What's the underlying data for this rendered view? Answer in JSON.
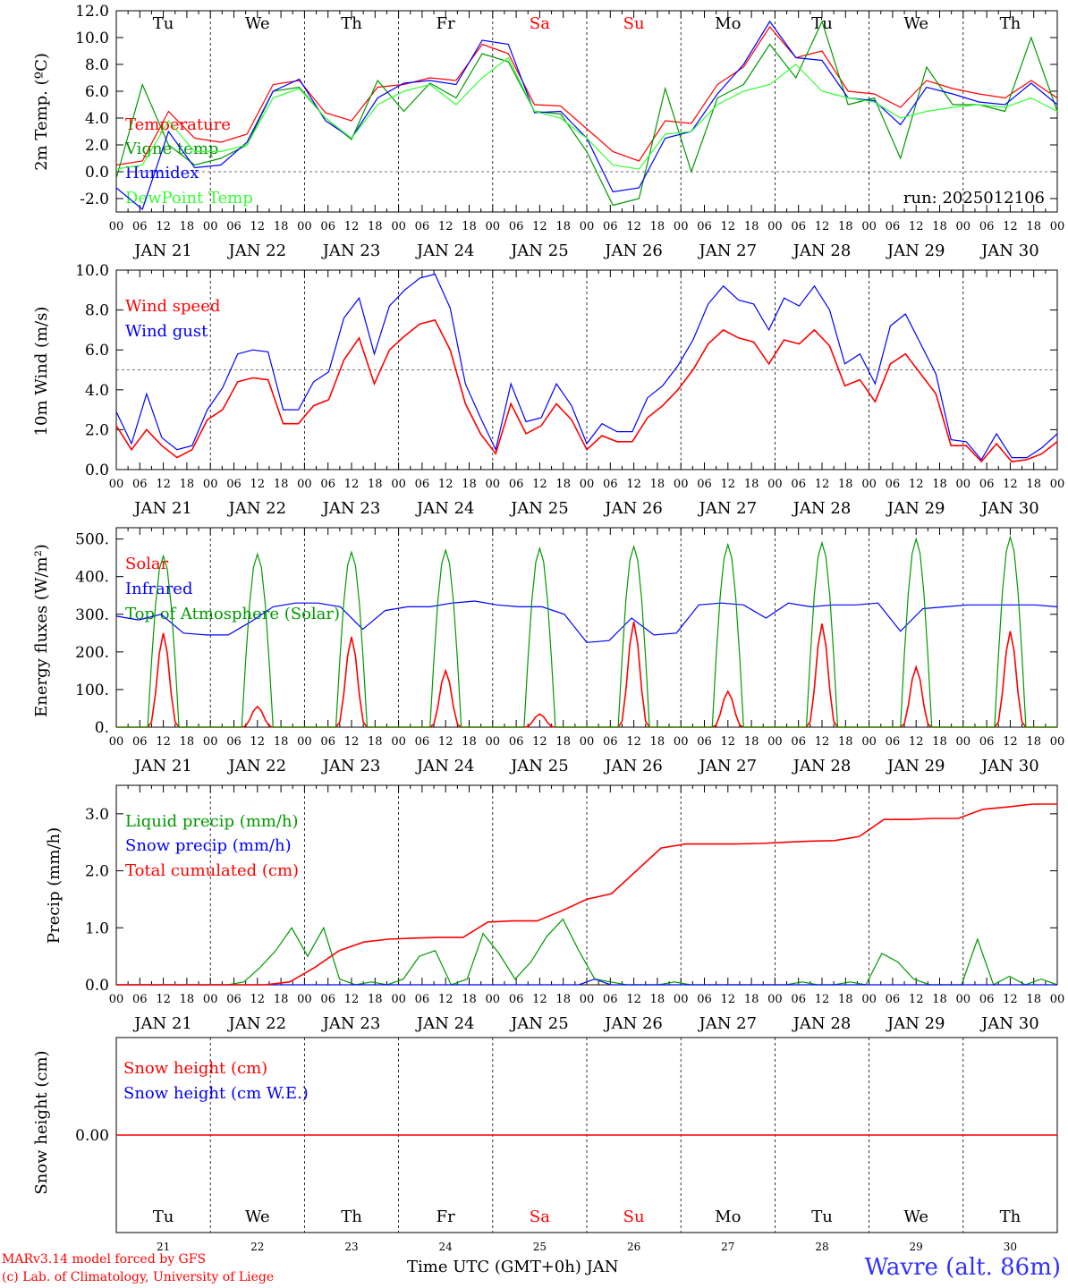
{
  "footer": {
    "credit_line1": "MARv3.14 model forced by GFS",
    "credit_line2": "(c) Lab. of Climatology, University of Liege",
    "x_axis_title": "Time UTC (GMT+0h) JAN",
    "location": "Wavre (alt. 86m)"
  },
  "colors": {
    "red": "#ff0000",
    "green": "#009900",
    "blue": "#0000ff",
    "lightgreen": "#33ff33",
    "weekend": "#ff0000"
  },
  "common": {
    "hour_ticks": [
      "00",
      "06",
      "12",
      "18"
    ],
    "date_labels": [
      "JAN 21",
      "JAN 22",
      "JAN 23",
      "JAN 24",
      "JAN 25",
      "JAN 26",
      "JAN 27",
      "JAN 28",
      "JAN 29",
      "JAN 30"
    ],
    "day_abbr": [
      "Tu",
      "We",
      "Th",
      "Fr",
      "Sa",
      "Su",
      "Mo",
      "Tu",
      "We",
      "Th"
    ],
    "weekend_days": [
      "Sa",
      "Su"
    ],
    "day_numbers": [
      "21",
      "22",
      "23",
      "24",
      "25",
      "26",
      "27",
      "28",
      "29",
      "30"
    ]
  },
  "chart_data": [
    {
      "type": "line",
      "ylabel": "2m Temp. (ºC)",
      "ylim": [
        -3,
        12
      ],
      "yticks": [
        "-2.0",
        "0.0",
        "2.0",
        "4.0",
        "6.0",
        "8.0",
        "10.0",
        "12.0"
      ],
      "ytick_values": [
        -2,
        0,
        2,
        4,
        6,
        8,
        10,
        12
      ],
      "reference_line": 0,
      "annotation": "run: 2025012106",
      "x_hours": [
        0,
        6,
        12,
        18,
        24,
        30,
        36,
        42,
        48,
        54,
        60,
        66,
        72,
        78,
        84,
        90,
        96,
        102,
        108,
        114,
        120,
        126,
        132,
        138,
        144,
        150,
        156,
        162,
        168,
        174,
        180,
        186,
        192,
        198,
        204,
        210,
        216,
        222,
        228,
        234,
        240
      ],
      "series": [
        {
          "name": "Temperature",
          "color": "red",
          "values": [
            0.5,
            0.8,
            4.5,
            2.5,
            2.2,
            2.8,
            6.5,
            6.8,
            4.4,
            3.8,
            6.3,
            6.5,
            7.0,
            6.8,
            9.5,
            8.8,
            5.0,
            4.9,
            3.2,
            1.5,
            0.8,
            3.8,
            3.6,
            6.5,
            7.8,
            10.8,
            8.5,
            9.0,
            6.0,
            5.8,
            4.8,
            6.8,
            6.2,
            5.8,
            5.5,
            6.8,
            5.5
          ]
        },
        {
          "name": "Vigne temp",
          "color": "green",
          "values": [
            -0.5,
            6.5,
            2.0,
            0.5,
            1.0,
            2.0,
            6.0,
            6.3,
            4.0,
            2.4,
            6.8,
            4.5,
            6.6,
            5.5,
            8.8,
            8.2,
            4.5,
            4.3,
            1.5,
            -2.5,
            -2.0,
            6.2,
            0.0,
            5.5,
            6.5,
            9.5,
            7.0,
            11.2,
            5.0,
            5.5,
            1.0,
            7.8,
            5.0,
            5.0,
            4.5,
            10.0,
            4.5
          ]
        },
        {
          "name": "Humidex",
          "color": "blue",
          "values": [
            -1.2,
            -2.8,
            3.0,
            0.3,
            0.5,
            2.2,
            6.0,
            6.9,
            3.8,
            2.5,
            5.5,
            6.6,
            6.8,
            6.5,
            9.8,
            9.5,
            4.4,
            4.5,
            2.5,
            -1.5,
            -1.2,
            2.5,
            3.0,
            5.8,
            8.0,
            11.2,
            8.5,
            8.3,
            5.5,
            5.3,
            3.5,
            6.3,
            5.8,
            5.2,
            5.0,
            6.6,
            5.0
          ]
        },
        {
          "name": "DewPoint Temp",
          "color": "lightgreen",
          "values": [
            0.2,
            0.5,
            3.8,
            1.5,
            1.5,
            2.0,
            5.5,
            6.2,
            4.0,
            2.5,
            5.0,
            6.0,
            6.5,
            5.0,
            7.0,
            8.5,
            4.5,
            4.0,
            2.5,
            0.5,
            0.2,
            2.8,
            3.0,
            5.0,
            6.0,
            6.5,
            8.0,
            6.0,
            5.5,
            5.2,
            4.0,
            4.5,
            4.8,
            5.0,
            4.8,
            5.5,
            4.5
          ]
        }
      ]
    },
    {
      "type": "line",
      "ylabel": "10m Wind (m/s)",
      "ylim": [
        0,
        10
      ],
      "yticks": [
        "0.0",
        "2.0",
        "4.0",
        "6.0",
        "8.0",
        "10.0"
      ],
      "ytick_values": [
        0,
        2,
        4,
        6,
        8,
        10
      ],
      "reference_line": 5,
      "series": [
        {
          "name": "Wind speed",
          "color": "red",
          "values": [
            2.2,
            1.0,
            2.0,
            1.2,
            0.6,
            1.0,
            2.5,
            3.0,
            4.4,
            4.6,
            4.5,
            2.3,
            2.3,
            3.2,
            3.5,
            5.5,
            6.6,
            4.3,
            6.0,
            6.7,
            7.3,
            7.5,
            6.0,
            3.3,
            1.8,
            0.8,
            3.3,
            1.8,
            2.2,
            3.3,
            2.5,
            1.0,
            1.7,
            1.4,
            1.4,
            2.6,
            3.2,
            4.0,
            5.0,
            6.3,
            7.0,
            6.6,
            6.4,
            5.3,
            6.5,
            6.3,
            7.0,
            6.2,
            4.2,
            4.5,
            3.4,
            5.3,
            5.8,
            4.8,
            3.8,
            1.2,
            1.2,
            0.4,
            1.3,
            0.4,
            0.5,
            0.8,
            1.4
          ]
        },
        {
          "name": "Wind gust",
          "color": "blue",
          "values": [
            2.9,
            1.3,
            3.8,
            1.6,
            1.0,
            1.2,
            3.0,
            4.1,
            5.8,
            6.0,
            5.9,
            3.0,
            3.0,
            4.4,
            4.9,
            7.6,
            8.6,
            5.8,
            8.2,
            9.0,
            9.6,
            9.8,
            8.1,
            4.3,
            2.6,
            1.0,
            4.3,
            2.4,
            2.6,
            4.3,
            3.2,
            1.3,
            2.3,
            1.9,
            1.9,
            3.6,
            4.2,
            5.2,
            6.5,
            8.3,
            9.2,
            8.5,
            8.3,
            7.0,
            8.6,
            8.2,
            9.2,
            8.0,
            5.3,
            5.8,
            4.3,
            7.2,
            7.8,
            6.3,
            4.8,
            1.5,
            1.4,
            0.5,
            1.8,
            0.6,
            0.6,
            1.1,
            1.8
          ]
        }
      ]
    },
    {
      "type": "line",
      "ylabel": "Energy fluxes (W/m²)",
      "ylim": [
        0,
        530
      ],
      "yticks": [
        "0.",
        "100.",
        "200.",
        "300.",
        "400.",
        "500."
      ],
      "ytick_values": [
        0,
        100,
        200,
        300,
        400,
        500
      ],
      "series": [
        {
          "name": "Solar",
          "color": "red",
          "peaks": [
            250,
            55,
            240,
            150,
            35,
            280,
            95,
            275,
            160,
            255
          ]
        },
        {
          "name": "Infrared",
          "color": "blue",
          "values": [
            295,
            285,
            300,
            250,
            245,
            245,
            280,
            320,
            330,
            330,
            320,
            260,
            310,
            320,
            320,
            330,
            335,
            325,
            320,
            320,
            300,
            225,
            230,
            290,
            245,
            250,
            325,
            330,
            325,
            290,
            330,
            320,
            325,
            325,
            330,
            255,
            315,
            320,
            325,
            325,
            325,
            325,
            320
          ]
        },
        {
          "name": "Top of Atmosphere (Solar)",
          "color": "green",
          "peaks": [
            455,
            460,
            465,
            470,
            475,
            480,
            485,
            490,
            500,
            505
          ]
        }
      ]
    },
    {
      "type": "line",
      "ylabel": "Precip (mm/h)",
      "ylim": [
        0,
        3.5
      ],
      "yticks": [
        "0.0",
        "1.0",
        "2.0",
        "3.0"
      ],
      "ytick_values": [
        0,
        1,
        2,
        3
      ],
      "series": [
        {
          "name": "Liquid precip (mm/h)",
          "color": "green",
          "values": [
            0,
            0,
            0,
            0,
            0,
            0,
            0,
            0,
            0.05,
            0.3,
            0.6,
            1.0,
            0.5,
            1.0,
            0.1,
            0,
            0.05,
            0,
            0.1,
            0.5,
            0.6,
            0,
            0.1,
            0.9,
            0.55,
            0.1,
            0.4,
            0.85,
            1.15,
            0.6,
            0.1,
            0.05,
            0,
            0,
            0,
            0.05,
            0,
            0,
            0,
            0,
            0,
            0,
            0,
            0.05,
            0,
            0,
            0.05,
            0,
            0.55,
            0.4,
            0.1,
            0,
            0,
            0,
            0.8,
            0,
            0.15,
            0,
            0.1,
            0
          ]
        },
        {
          "name": "Snow precip (mm/h)",
          "color": "blue",
          "values": [
            0,
            0,
            0,
            0,
            0,
            0,
            0,
            0,
            0,
            0,
            0,
            0,
            0,
            0,
            0,
            0,
            0,
            0,
            0,
            0,
            0,
            0,
            0,
            0,
            0,
            0,
            0,
            0,
            0,
            0,
            0.1,
            0,
            0,
            0,
            0,
            0,
            0,
            0,
            0,
            0,
            0,
            0,
            0,
            0,
            0,
            0,
            0,
            0,
            0,
            0,
            0,
            0,
            0,
            0,
            0,
            0,
            0,
            0,
            0,
            0
          ]
        },
        {
          "name": "Total cumulated (cm)",
          "color": "red",
          "values": [
            0,
            0,
            0,
            0,
            0,
            0,
            0,
            0.05,
            0.3,
            0.6,
            0.75,
            0.8,
            0.82,
            0.83,
            0.83,
            1.1,
            1.12,
            1.12,
            1.3,
            1.5,
            1.6,
            2.0,
            2.4,
            2.47,
            2.47,
            2.47,
            2.48,
            2.5,
            2.52,
            2.53,
            2.6,
            2.9,
            2.9,
            2.92,
            2.92,
            3.08,
            3.12,
            3.17,
            3.17
          ]
        }
      ]
    },
    {
      "type": "line",
      "ylabel": "Snow height (cm)",
      "ylim": [
        -1,
        1
      ],
      "yticks": [
        "0.00"
      ],
      "ytick_values": [
        0
      ],
      "series": [
        {
          "name": "Snow height (cm)",
          "color": "red",
          "values": [
            0,
            0
          ]
        },
        {
          "name": "Snow height (cm W.E.)",
          "color": "blue",
          "values": [
            0,
            0
          ]
        }
      ]
    }
  ]
}
